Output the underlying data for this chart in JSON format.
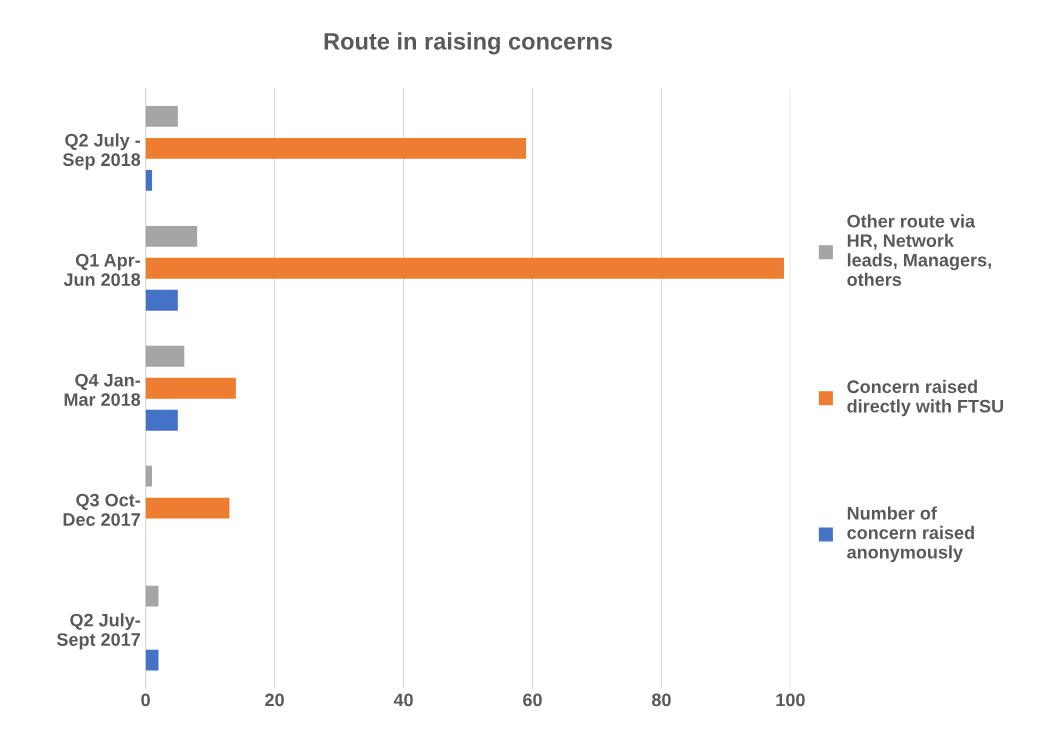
{
  "chart_data": {
    "type": "bar",
    "orientation": "horizontal",
    "title": "Route in raising concerns",
    "categories": [
      "Q2 July -\nSep 2018",
      "Q1 Apr-\nJun 2018",
      "Q4 Jan-\nMar 2018",
      "Q3 Oct-\nDec 2017",
      "Q2 July-\nSept 2017"
    ],
    "series": [
      {
        "name": "Other route via\nHR, Network\nleads, Managers,\nothers",
        "color": "#a5a5a5",
        "values": [
          5,
          8,
          6,
          1,
          2
        ]
      },
      {
        "name": "Concern raised\ndirectly with FTSU",
        "color": "#ed7d31",
        "values": [
          59,
          99,
          14,
          13,
          null
        ]
      },
      {
        "name": "Number of\nconcern raised\nanonymously",
        "color": "#4472c4",
        "values": [
          1,
          5,
          5,
          null,
          2
        ]
      }
    ],
    "xlim": [
      0,
      100
    ],
    "xticks": [
      0,
      20,
      40,
      60,
      80,
      100
    ],
    "grid": "x",
    "legend": "right"
  }
}
